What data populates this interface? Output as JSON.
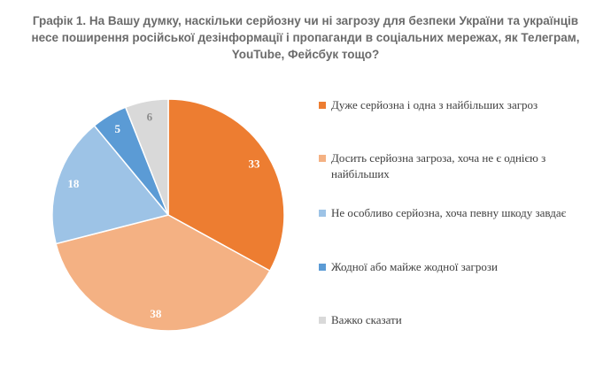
{
  "chart_data": {
    "type": "pie",
    "title": "Графік 1. На Вашу думку, наскільки серйозну чи ні загрозу для безпеки України та українців несе поширення російської дезінформації і пропаганди в соціальних мережах, як Телеграм, YouTube, Фейсбук тощо?",
    "categories": [
      "Дуже серйозна і одна з найбільших загроз",
      "Досить серйозна загроза, хоча не є однією з найбільших",
      "Не особливо серйозна, хоча певну шкоду завдає",
      "Жодної або майже жодної загрози",
      "Важко сказати"
    ],
    "values": [
      33,
      38,
      18,
      5,
      6
    ],
    "value_labels": [
      "33",
      "38",
      "18",
      "5",
      "6"
    ],
    "colors": [
      "#ED7D31",
      "#F4B183",
      "#9DC3E6",
      "#5B9BD5",
      "#D9D9D9"
    ],
    "legend_position": "right",
    "start_angle_deg": 0,
    "direction": "clockwise"
  }
}
